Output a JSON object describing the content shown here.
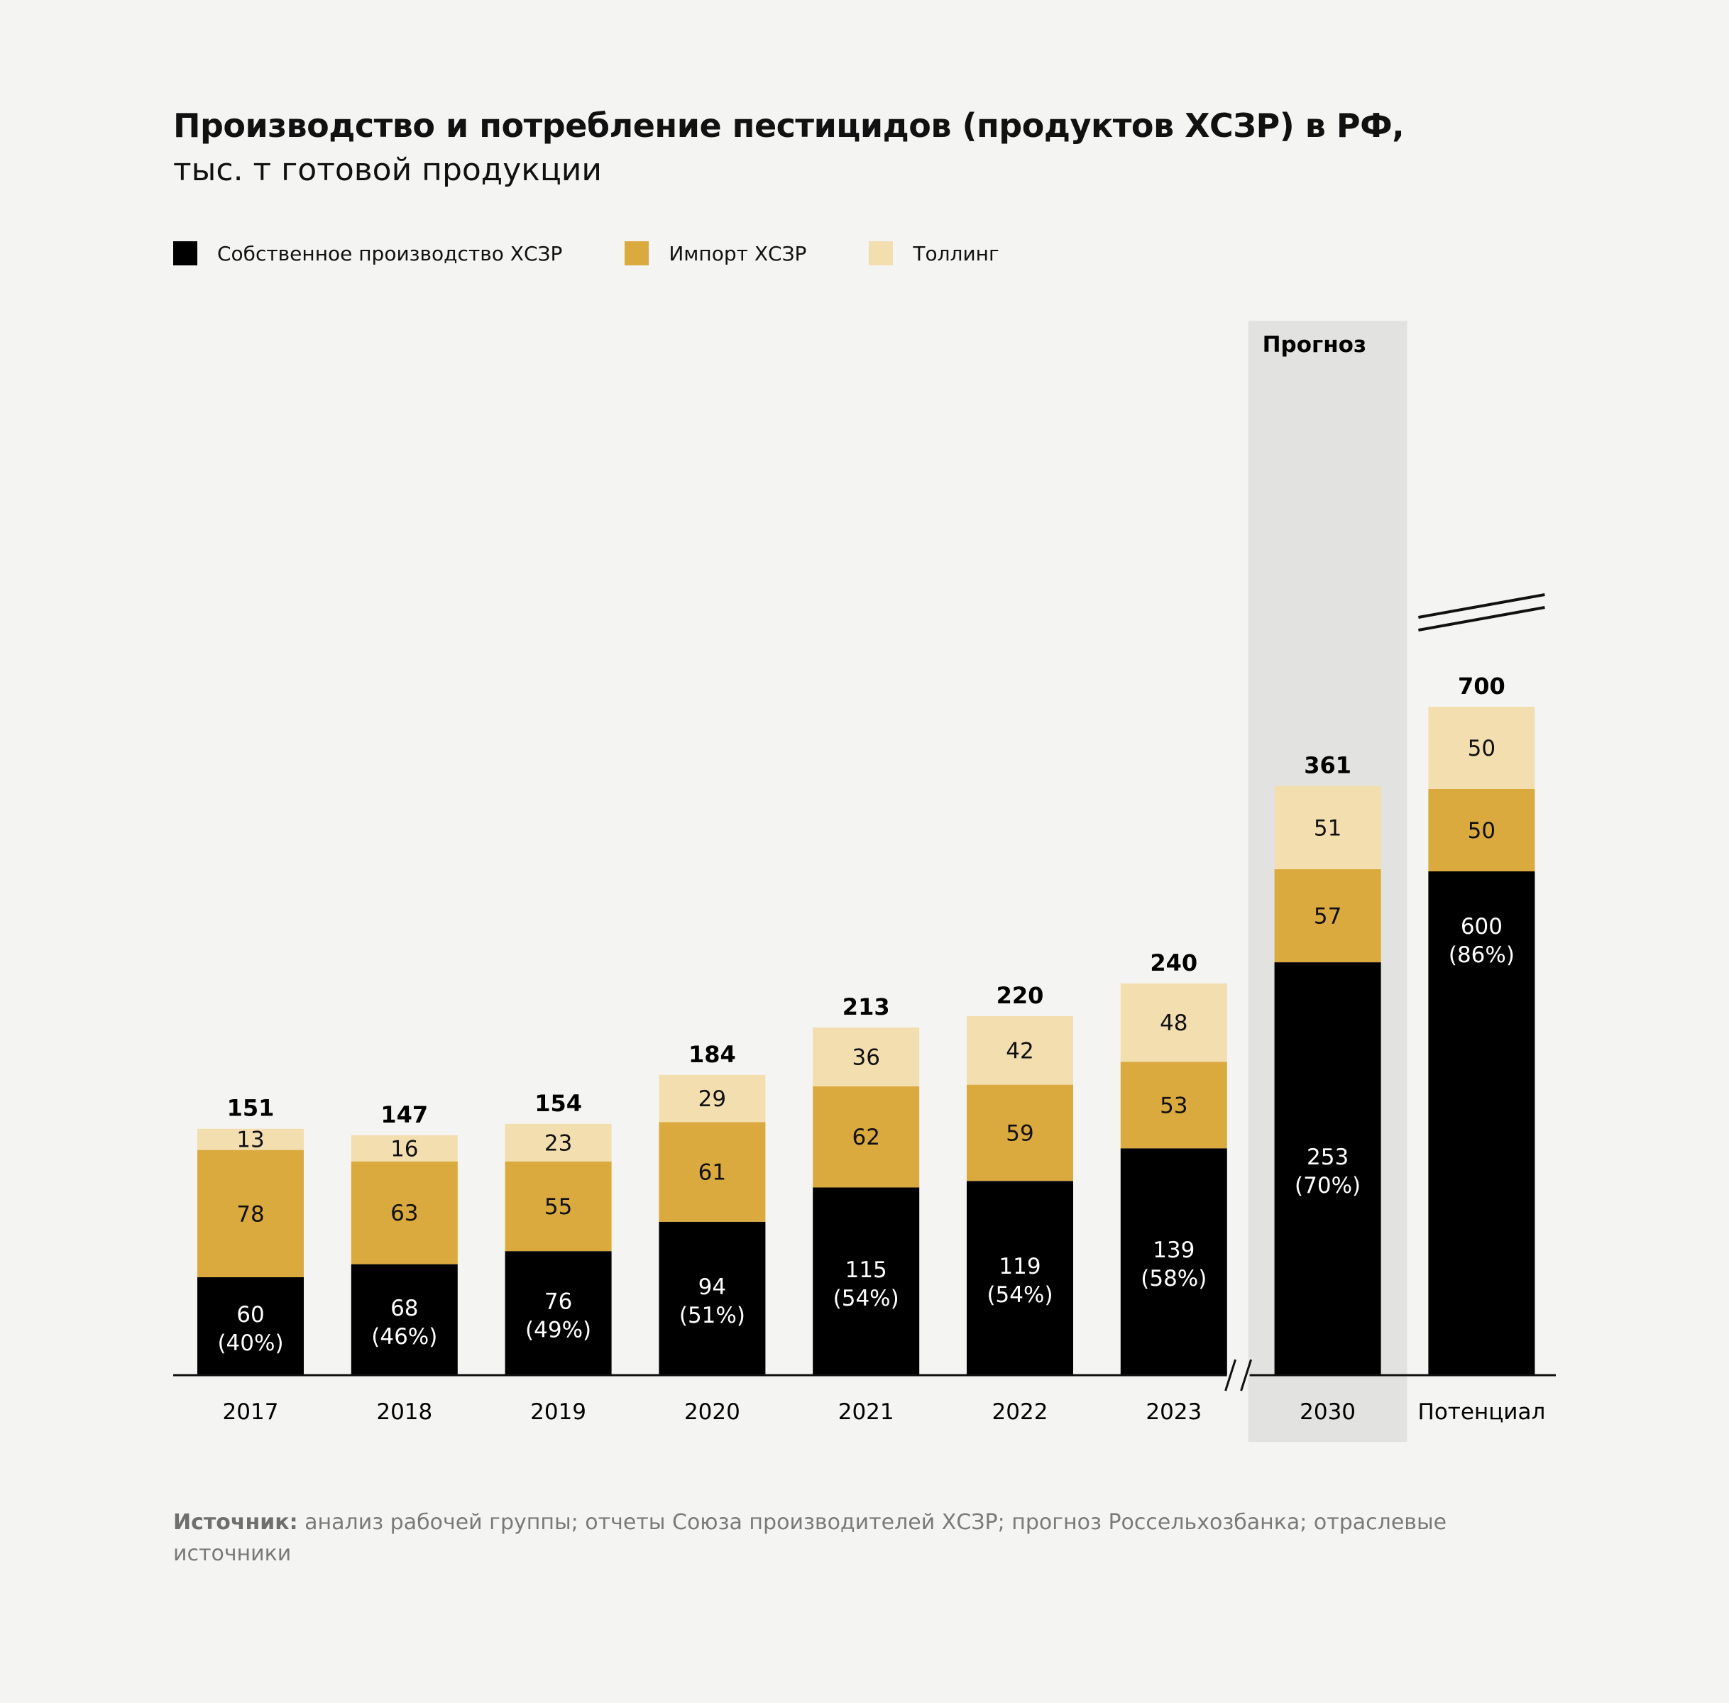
{
  "title": "Производство и потребление пестицидов (продуктов ХСЗР) в РФ,",
  "subtitle": "тыс. т готовой продукции",
  "legend": {
    "own": "Собственное производство ХСЗР",
    "import": "Импорт ХСЗР",
    "tolling": "Толлинг"
  },
  "forecast_label": "Прогноз",
  "source": {
    "label": "Источник:",
    "text": "анализ рабочей группы; отчеты Союза производителей ХСЗР; прогноз Россельхозбанка; отраслевые источники"
  },
  "colors": {
    "own": "#000000",
    "import": "#dbaa3f",
    "tolling": "#f3deb0",
    "forecast_band": "#e2e2e0",
    "background": "#f4f4f2"
  },
  "chart_data": {
    "type": "bar",
    "stacked": true,
    "categories": [
      "2017",
      "2018",
      "2019",
      "2020",
      "2021",
      "2022",
      "2023",
      "2030",
      "Потенциал"
    ],
    "series": [
      {
        "name": "Собственное производство ХСЗР",
        "values": [
          60,
          68,
          76,
          94,
          115,
          119,
          139,
          253,
          600
        ],
        "labels": [
          "(40%)",
          "(46%)",
          "(49%)",
          "(51%)",
          "(54%)",
          "(54%)",
          "(58%)",
          "(70%)",
          "(86%)"
        ]
      },
      {
        "name": "Импорт ХСЗР",
        "values": [
          78,
          63,
          55,
          61,
          62,
          59,
          53,
          57,
          50
        ]
      },
      {
        "name": "Толлинг",
        "values": [
          13,
          16,
          23,
          29,
          36,
          42,
          48,
          51,
          50
        ]
      }
    ],
    "totals": [
      151,
      147,
      154,
      184,
      213,
      220,
      240,
      361,
      700
    ],
    "forecast_categories": [
      "2030"
    ],
    "axis_break": "before 2030",
    "value_break": "Потенциал own-production bar is truncated",
    "legend_position": "top-left",
    "grid": false
  }
}
